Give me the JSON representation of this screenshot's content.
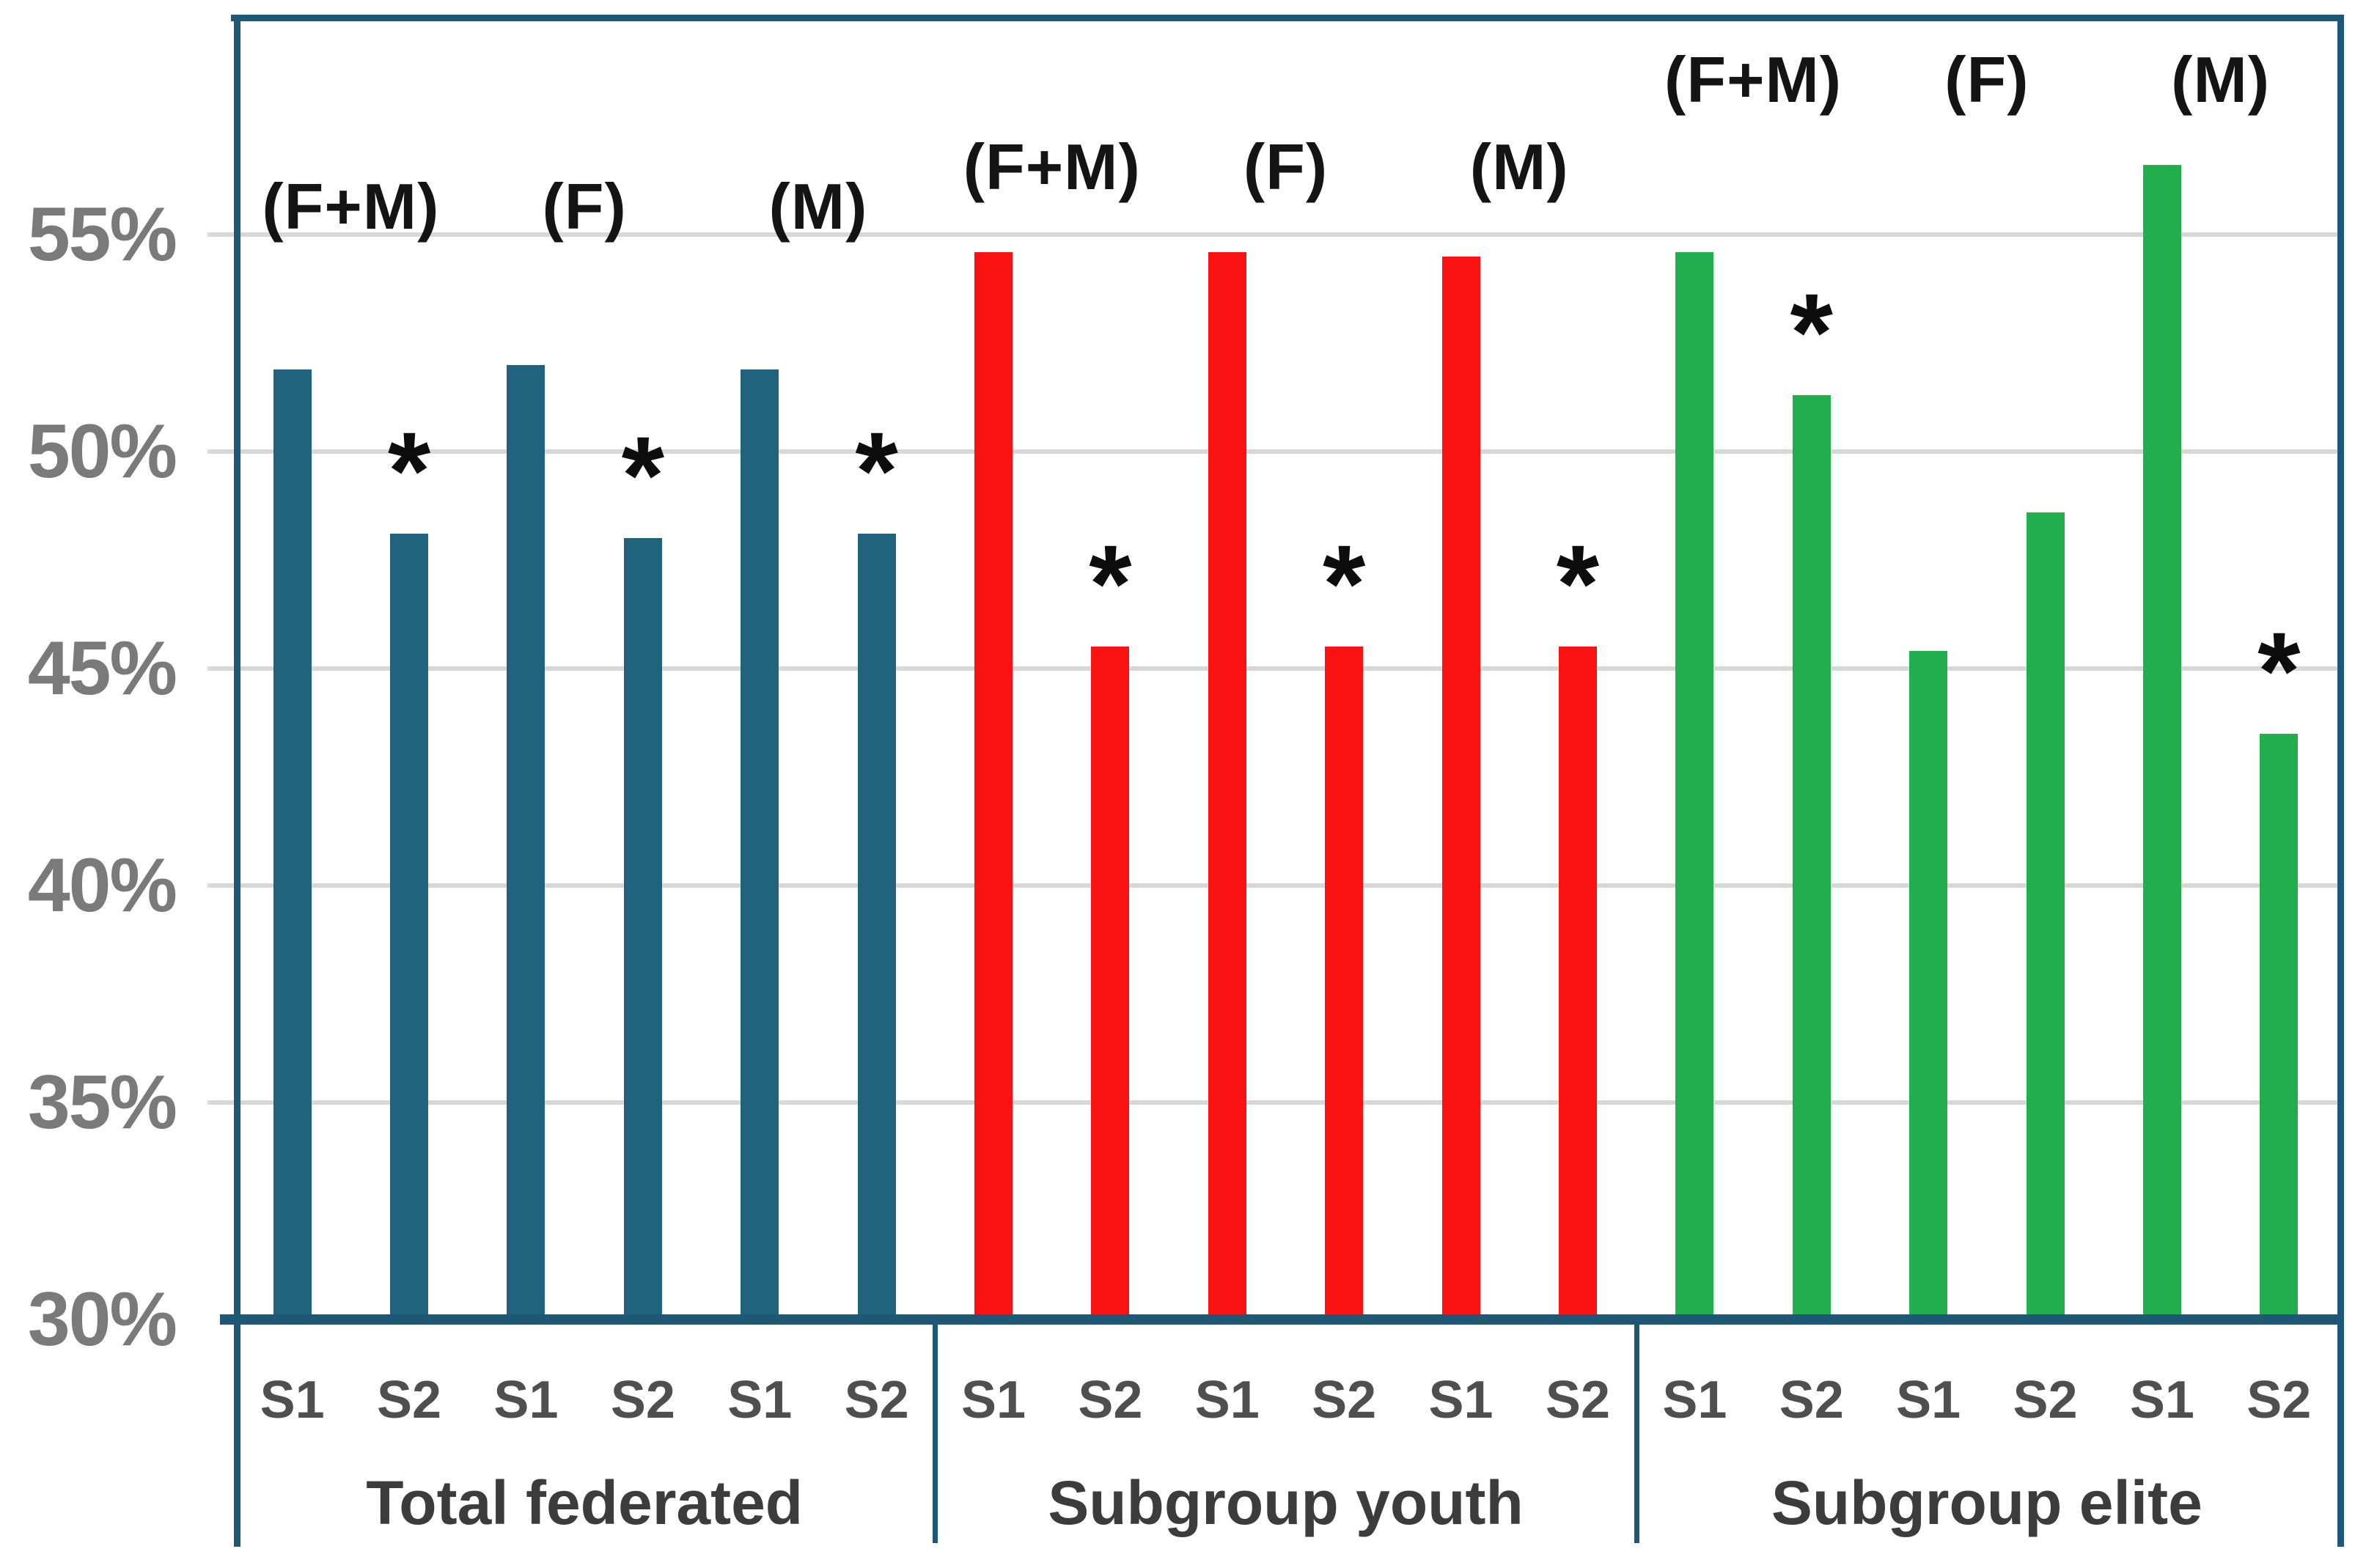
{
  "chart_data": {
    "type": "bar",
    "title": "",
    "xlabel": "",
    "ylabel": "",
    "ylim": [
      30,
      60
    ],
    "grid": true,
    "legend": "none",
    "y_ticks": [
      {
        "value": 55,
        "label": "55%"
      },
      {
        "value": 50,
        "label": "50%"
      },
      {
        "value": 45,
        "label": "45%"
      },
      {
        "value": 40,
        "label": "40%"
      },
      {
        "value": 35,
        "label": "35%"
      },
      {
        "value": 30,
        "label": "30%"
      }
    ],
    "significance_marker": "*",
    "series_labels": [
      "S1",
      "S2"
    ],
    "groups": [
      {
        "label": "Total federated",
        "bar_color": "#21627F",
        "pairs": [
          {
            "annotation": "(F+M)",
            "bars": [
              {
                "x": "S1",
                "value": 51.9,
                "star": false
              },
              {
                "x": "S2",
                "value": 48.1,
                "star": true
              }
            ]
          },
          {
            "annotation": "(F)",
            "bars": [
              {
                "x": "S1",
                "value": 52.0,
                "star": false
              },
              {
                "x": "S2",
                "value": 48.0,
                "star": true
              }
            ]
          },
          {
            "annotation": "(M)",
            "bars": [
              {
                "x": "S1",
                "value": 51.9,
                "star": false
              },
              {
                "x": "S2",
                "value": 48.1,
                "star": true
              }
            ]
          }
        ]
      },
      {
        "label": "Subgroup youth",
        "bar_color": "#FA1212",
        "pairs": [
          {
            "annotation": "(F+M)",
            "bars": [
              {
                "x": "S1",
                "value": 54.6,
                "star": false
              },
              {
                "x": "S2",
                "value": 45.5,
                "star": true
              }
            ]
          },
          {
            "annotation": "(F)",
            "bars": [
              {
                "x": "S1",
                "value": 54.6,
                "star": false
              },
              {
                "x": "S2",
                "value": 45.5,
                "star": true
              }
            ]
          },
          {
            "annotation": "(M)",
            "bars": [
              {
                "x": "S1",
                "value": 54.5,
                "star": false
              },
              {
                "x": "S2",
                "value": 45.5,
                "star": true
              }
            ]
          }
        ]
      },
      {
        "label": "Subgroup elite",
        "bar_color": "#22AE4D",
        "pairs": [
          {
            "annotation": "(F+M)",
            "bars": [
              {
                "x": "S1",
                "value": 54.6,
                "star": false
              },
              {
                "x": "S2",
                "value": 51.3,
                "star": true
              }
            ]
          },
          {
            "annotation": "(F)",
            "bars": [
              {
                "x": "S1",
                "value": 45.4,
                "star": false
              },
              {
                "x": "S2",
                "value": 48.6,
                "star": false
              }
            ]
          },
          {
            "annotation": "(M)",
            "bars": [
              {
                "x": "S1",
                "value": 56.6,
                "star": false
              },
              {
                "x": "S2",
                "value": 43.5,
                "star": true
              }
            ]
          }
        ]
      }
    ],
    "colors": {
      "border": "#1F5876",
      "gridline": "#D8D8D8",
      "y_tick_text": "#7A7A7A",
      "x_tick_text": "#4F4F4F",
      "group_label_text": "#3C3C3C",
      "annotation_text": "#141414",
      "background": "#FFFFFF"
    }
  }
}
